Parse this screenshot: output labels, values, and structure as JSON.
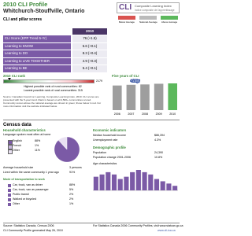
{
  "header": {
    "title": "2010 CLI Profile",
    "subtitle": "Whitchurch-Stouffville, Ontario",
    "logo": "Composite Learning Index",
    "logo_fr": "Indice composite de l'apprentissage"
  },
  "scores": {
    "title": "CLI and pillar scores",
    "legend": [
      "Below Average",
      "National Average",
      "Above Average"
    ],
    "year": "2010",
    "rows": [
      [
        "CLI Score (EPP Trend 5-Yr)",
        "76 (+1.5)"
      ],
      [
        "Learning to KNOW",
        "5.6 (+0.1)"
      ],
      [
        "Learning to DO",
        "8.3 (+0.4)"
      ],
      [
        "Learning to LIVE TOGETHER",
        "4.9 (+0.3)"
      ],
      [
        "Learning to BE",
        "5.4 (+0.1)"
      ]
    ]
  },
  "rank": {
    "title": "2010 CLI rank",
    "end": "2179",
    "notes": [
      "Highest possible rank of rural communities: 82",
      "Lowest possible rank of rural communities: 315"
    ]
  },
  "source_note": "Source: Canadian Council on Learning, Composite Learning Index, 2010. CLI scores are presented with the 5-year trend. Rank is based on all 4,500+ communities scored. Community scores above the national average are shown in green; those below in red. For more information visit the website indicated below.",
  "five_year": {
    "title": "Five years of CLI",
    "annotation": "+1.5/yr",
    "years": [
      "2006",
      "2007",
      "2008",
      "2009",
      "2010"
    ],
    "values": [
      70,
      72,
      73,
      75,
      76
    ]
  },
  "census": {
    "title": "Census data",
    "household": {
      "title": "Household characteristics",
      "language_title": "Language spoken most often at home",
      "languages": [
        "English",
        "French",
        "Other"
      ],
      "values": [
        88,
        1,
        11
      ],
      "value_labels": [
        "88%",
        "1%",
        "11%"
      ],
      "colors": [
        "#7b5aa6",
        "#c9b8de",
        "#e9e1f2"
      ],
      "rows": [
        [
          "Average household size",
          "3 persons"
        ],
        [
          "Lived within the same community 1 year ago",
          "91%"
        ]
      ],
      "transport_title": "Mode of transportation to work",
      "transport": [
        [
          "Car, truck, van as driver",
          "88%"
        ],
        [
          "Car, truck, van as passenger",
          "5%"
        ],
        [
          "Public transit",
          "2%"
        ],
        [
          "Walked or bicycled",
          "2%"
        ],
        [
          "Other",
          "1%"
        ]
      ]
    },
    "economic": {
      "title": "Economic indicators",
      "rows": [
        [
          "Median household income",
          "$86,394"
        ],
        [
          "Unemployment rate",
          "4.3%"
        ]
      ]
    },
    "demographic": {
      "title": "Demographic profile",
      "rows": [
        [
          "Population",
          "24,390"
        ],
        [
          "Population change 2001-2006",
          "10.8%"
        ]
      ]
    },
    "age": {
      "title": "Age characteristics",
      "values": [
        6,
        7,
        8,
        7,
        5,
        6,
        8,
        9,
        8,
        7,
        5,
        4,
        3,
        2
      ]
    }
  },
  "footer": {
    "source": "Source: Statistics Canada, Census 2006",
    "visit": "For Statistics Canada 2006 Community Profiles, visit www.statcan.gc.ca",
    "generated": "CLI Community Profile generated May 26, 2010",
    "url": "www.cli-ica.ca"
  }
}
